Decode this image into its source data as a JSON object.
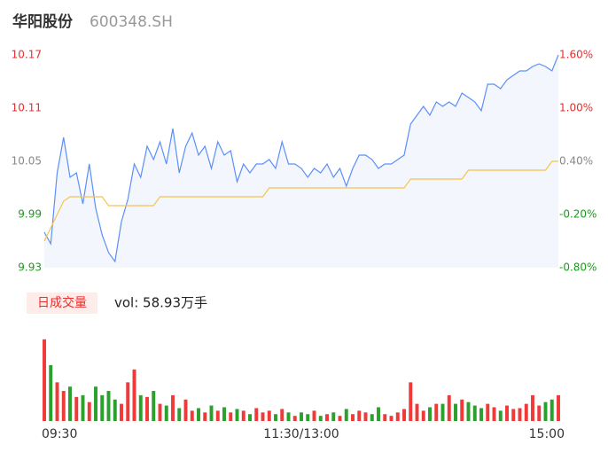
{
  "header": {
    "name": "华阳股份",
    "code": "600348.SH"
  },
  "chart_data": {
    "type": "intraday",
    "x": [
      0,
      3,
      6,
      9,
      12,
      15,
      18,
      21,
      24,
      27,
      30,
      33,
      36,
      39,
      42,
      45,
      48,
      51,
      54,
      57,
      60,
      63,
      66,
      69,
      72,
      75,
      78,
      81,
      84,
      87,
      90,
      93,
      96,
      99,
      102,
      105,
      108,
      111,
      114,
      117,
      120,
      123,
      126,
      129,
      132,
      135,
      138,
      141,
      144,
      147,
      150,
      153,
      156,
      159,
      162,
      165,
      168,
      171,
      174,
      177,
      180,
      183,
      186,
      189,
      192,
      195,
      198,
      201,
      204,
      207,
      210,
      213,
      216,
      219,
      222,
      225,
      228,
      231,
      234,
      237,
      240
    ],
    "series": [
      {
        "name": "price",
        "color": "#5b8ff9",
        "values": [
          9.97,
          9.957,
          10.037,
          10.077,
          10.032,
          10.037,
          10.002,
          10.047,
          9.997,
          9.967,
          9.947,
          9.937,
          9.982,
          10.007,
          10.047,
          10.032,
          10.067,
          10.052,
          10.072,
          10.047,
          10.087,
          10.037,
          10.067,
          10.082,
          10.057,
          10.067,
          10.042,
          10.072,
          10.057,
          10.062,
          10.027,
          10.047,
          10.037,
          10.047,
          10.047,
          10.052,
          10.042,
          10.072,
          10.047,
          10.047,
          10.042,
          10.032,
          10.042,
          10.037,
          10.047,
          10.032,
          10.042,
          10.022,
          10.042,
          10.057,
          10.057,
          10.052,
          10.042,
          10.047,
          10.047,
          10.052,
          10.057,
          10.092,
          10.102,
          10.112,
          10.102,
          10.117,
          10.112,
          10.117,
          10.112,
          10.127,
          10.122,
          10.117,
          10.107,
          10.137,
          10.137,
          10.132,
          10.142,
          10.147,
          10.152,
          10.152,
          10.157,
          10.16,
          10.157,
          10.152,
          10.17
        ]
      },
      {
        "name": "average",
        "color": "#f5c450",
        "values": [
          9.96,
          9.975,
          9.99,
          10.005,
          10.01,
          10.01,
          10.01,
          10.01,
          10.01,
          10.01,
          10.0,
          10.0,
          10.0,
          10.0,
          10.0,
          10.0,
          10.0,
          10.0,
          10.01,
          10.01,
          10.01,
          10.01,
          10.01,
          10.01,
          10.01,
          10.01,
          10.01,
          10.01,
          10.01,
          10.01,
          10.01,
          10.01,
          10.01,
          10.01,
          10.01,
          10.02,
          10.02,
          10.02,
          10.02,
          10.02,
          10.02,
          10.02,
          10.02,
          10.02,
          10.02,
          10.02,
          10.02,
          10.02,
          10.02,
          10.02,
          10.02,
          10.02,
          10.02,
          10.02,
          10.02,
          10.02,
          10.02,
          10.03,
          10.03,
          10.03,
          10.03,
          10.03,
          10.03,
          10.03,
          10.03,
          10.03,
          10.04,
          10.04,
          10.04,
          10.04,
          10.04,
          10.04,
          10.04,
          10.04,
          10.04,
          10.04,
          10.04,
          10.04,
          10.04,
          10.05,
          10.05
        ]
      }
    ],
    "volume": [
      95,
      65,
      45,
      35,
      40,
      28,
      30,
      22,
      40,
      30,
      35,
      25,
      20,
      45,
      60,
      30,
      28,
      35,
      20,
      18,
      30,
      15,
      25,
      12,
      15,
      10,
      18,
      12,
      16,
      10,
      14,
      12,
      8,
      15,
      10,
      12,
      8,
      14,
      10,
      6,
      10,
      8,
      12,
      6,
      8,
      10,
      6,
      14,
      8,
      12,
      10,
      8,
      16,
      8,
      6,
      10,
      14,
      45,
      20,
      12,
      16,
      20,
      20,
      30,
      20,
      25,
      22,
      18,
      15,
      20,
      16,
      12,
      18,
      14,
      15,
      20,
      30,
      18,
      22,
      25,
      30
    ],
    "vlim": [
      0,
      100
    ],
    "up_color": "#f03a3a",
    "down_color": "#2ca02c",
    "volume_button": "日成交量",
    "volume_label": "vol: 58.93万手",
    "xlim": [
      0,
      240
    ],
    "xticks": [
      {
        "value": 0,
        "label": "09:30"
      },
      {
        "value": 120,
        "label": "11:30/13:00"
      },
      {
        "value": 240,
        "label": "15:00"
      }
    ],
    "ylim": [
      9.93,
      10.17
    ],
    "yticks": [
      10.17,
      10.11,
      10.05,
      9.99,
      9.93
    ],
    "ytick_colors": [
      "#e62e2e",
      "#e62e2e",
      "#888888",
      "#1a9c1a",
      "#1a9c1a"
    ],
    "y2lim": [
      -0.8,
      1.6
    ],
    "y2ticks": [
      {
        "value": 1.6,
        "label": "1.60%"
      },
      {
        "value": 1.0,
        "label": "1.00%"
      },
      {
        "value": 0.4,
        "label": "0.40%"
      },
      {
        "value": -0.2,
        "label": "-0.20%"
      },
      {
        "value": -0.8,
        "label": "-0.80%"
      }
    ],
    "area_color": "#f3f6fd"
  }
}
